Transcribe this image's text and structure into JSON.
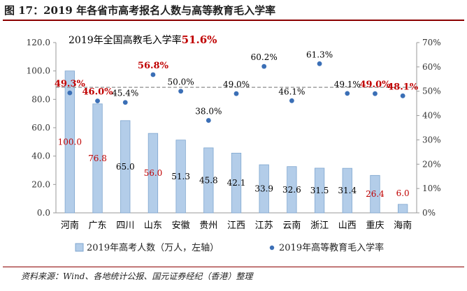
{
  "figure": {
    "title": "图 17：2019 年各省市高考报名人数与高等教育毛入学率",
    "source": "资料来源：Wind、各地统计公报、国元证券经纪（香港）整理"
  },
  "chart_data": {
    "type": "bar",
    "categories": [
      "河南",
      "广东",
      "四川",
      "山东",
      "安徽",
      "贵州",
      "江西",
      "江苏",
      "云南",
      "浙江",
      "山西",
      "重庆",
      "海南"
    ],
    "series": [
      {
        "name": "2019年高考人数（万人，左轴）",
        "kind": "bar",
        "axis": "left",
        "values": [
          100.0,
          76.8,
          65.0,
          56.0,
          51.3,
          45.8,
          42.1,
          33.9,
          32.6,
          31.5,
          31.4,
          26.4,
          6.0
        ],
        "labels": [
          "100.0",
          "76.8",
          "65.0",
          "56.0",
          "51.3",
          "45.8",
          "42.1",
          "33.9",
          "32.6",
          "31.5",
          "31.4",
          "26.4",
          "6.0"
        ],
        "highlight": [
          true,
          true,
          false,
          true,
          false,
          false,
          false,
          false,
          false,
          false,
          false,
          true,
          true
        ]
      },
      {
        "name": "2019年高等教育毛入学率",
        "kind": "scatter",
        "axis": "right",
        "values": [
          49.3,
          46.0,
          45.4,
          56.8,
          50.0,
          38.0,
          49.0,
          60.2,
          46.1,
          61.3,
          49.1,
          49.0,
          48.1
        ],
        "labels": [
          "49.3%",
          "46.0%",
          "45.4%",
          "56.8%",
          "50.0%",
          "38.0%",
          "49.0%",
          "60.2%",
          "46.1%",
          "61.3%",
          "49.1%",
          "49.0%",
          "48.1%"
        ],
        "highlight": [
          true,
          true,
          false,
          true,
          false,
          false,
          false,
          false,
          false,
          false,
          false,
          true,
          true
        ]
      }
    ],
    "left_axis": {
      "ylim": [
        0,
        120
      ],
      "ticks": [
        "0.0",
        "20.0",
        "40.0",
        "60.0",
        "80.0",
        "100.0",
        "120.0"
      ]
    },
    "right_axis": {
      "ylim": [
        0,
        70
      ],
      "ticks": [
        "0%",
        "10%",
        "20%",
        "30%",
        "40%",
        "50%",
        "60%",
        "70%"
      ]
    },
    "reference_line": {
      "value": 51.6,
      "axis": "right",
      "style": "dashed"
    },
    "annotation": {
      "text": "2019年全国高教毛入学率",
      "value_text": "51.6%"
    },
    "legend": {
      "position": "bottom"
    }
  },
  "colors": {
    "bar_fill": "#b3cde9",
    "bar_edge": "#7fa6cf",
    "dot": "#3b6fb6",
    "highlight": "#c00000",
    "ref_line": "#8c8c8c",
    "axis_text": "#333333",
    "title_rule": "#8b0000"
  }
}
